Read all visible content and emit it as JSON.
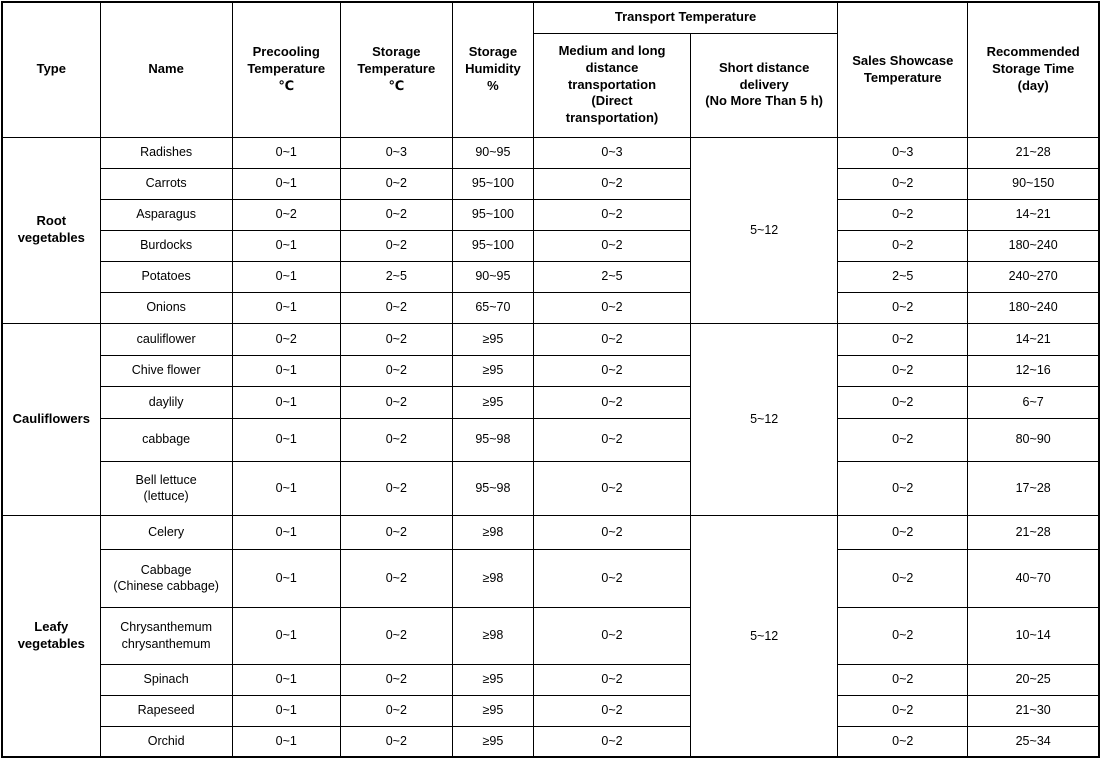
{
  "table": {
    "header": {
      "type": "Type",
      "name": "Name",
      "precooling_temperature": "Precooling\nTemperature\n℃",
      "storage_temperature": "Storage\nTemperature\n℃",
      "storage_humidity": "Storage\nHumidity\n%",
      "transport_temperature": "Transport Temperature",
      "medium_long": "Medium and long\ndistance\ntransportation\n(Direct\ntransportation)",
      "short_distance": "Short distance\ndelivery\n(No More Than 5 h)",
      "sales_showcase": "Sales Showcase\nTemperature",
      "recommended": "Recommended\nStorage Time\n(day)"
    },
    "sections": [
      {
        "type": "Root\nvegetables",
        "short_distance": "5~12",
        "rows": [
          {
            "name": "Radishes",
            "precooling": "0~1",
            "storage_temp": "0~3",
            "humidity": "90~95",
            "medium_long": "0~3",
            "sales": "0~3",
            "storage_time": "21~28"
          },
          {
            "name": "Carrots",
            "precooling": "0~1",
            "storage_temp": "0~2",
            "humidity": "95~100",
            "medium_long": "0~2",
            "sales": "0~2",
            "storage_time": "90~150"
          },
          {
            "name": "Asparagus",
            "precooling": "0~2",
            "storage_temp": "0~2",
            "humidity": "95~100",
            "medium_long": "0~2",
            "sales": "0~2",
            "storage_time": "14~21"
          },
          {
            "name": "Burdocks",
            "precooling": "0~1",
            "storage_temp": "0~2",
            "humidity": "95~100",
            "medium_long": "0~2",
            "sales": "0~2",
            "storage_time": "180~240"
          },
          {
            "name": "Potatoes",
            "precooling": "0~1",
            "storage_temp": "2~5",
            "humidity": "90~95",
            "medium_long": "2~5",
            "sales": "2~5",
            "storage_time": "240~270"
          },
          {
            "name": "Onions",
            "precooling": "0~1",
            "storage_temp": "0~2",
            "humidity": "65~70",
            "medium_long": "0~2",
            "sales": "0~2",
            "storage_time": "180~240"
          }
        ]
      },
      {
        "type": "Cauliflowers",
        "short_distance": "5~12",
        "rows": [
          {
            "name": "cauliflower",
            "precooling": "0~2",
            "storage_temp": "0~2",
            "humidity": "≥95",
            "medium_long": "0~2",
            "sales": "0~2",
            "storage_time": "14~21"
          },
          {
            "name": "Chive flower",
            "precooling": "0~1",
            "storage_temp": "0~2",
            "humidity": "≥95",
            "medium_long": "0~2",
            "sales": "0~2",
            "storage_time": "12~16"
          },
          {
            "name": "daylily",
            "precooling": "0~1",
            "storage_temp": "0~2",
            "humidity": "≥95",
            "medium_long": "0~2",
            "sales": "0~2",
            "storage_time": "6~7"
          },
          {
            "name": "cabbage",
            "precooling": "0~1",
            "storage_temp": "0~2",
            "humidity": "95~98",
            "medium_long": "0~2",
            "sales": "0~2",
            "storage_time": "80~90"
          },
          {
            "name": "Bell lettuce\n(lettuce)",
            "precooling": "0~1",
            "storage_temp": "0~2",
            "humidity": "95~98",
            "medium_long": "0~2",
            "sales": "0~2",
            "storage_time": "17~28"
          }
        ]
      },
      {
        "type": "Leafy\nvegetables",
        "short_distance": "5~12",
        "rows": [
          {
            "name": "Celery",
            "precooling": "0~1",
            "storage_temp": "0~2",
            "humidity": "≥98",
            "medium_long": "0~2",
            "sales": "0~2",
            "storage_time": "21~28"
          },
          {
            "name": "Cabbage\n(Chinese cabbage)",
            "precooling": "0~1",
            "storage_temp": "0~2",
            "humidity": "≥98",
            "medium_long": "0~2",
            "sales": "0~2",
            "storage_time": "40~70"
          },
          {
            "name": "Chrysanthemum\nchrysanthemum",
            "precooling": "0~1",
            "storage_temp": "0~2",
            "humidity": "≥98",
            "medium_long": "0~2",
            "sales": "0~2",
            "storage_time": "10~14"
          },
          {
            "name": "Spinach",
            "precooling": "0~1",
            "storage_temp": "0~2",
            "humidity": "≥95",
            "medium_long": "0~2",
            "sales": "0~2",
            "storage_time": "20~25"
          },
          {
            "name": "Rapeseed",
            "precooling": "0~1",
            "storage_temp": "0~2",
            "humidity": "≥95",
            "medium_long": "0~2",
            "sales": "0~2",
            "storage_time": "21~30"
          },
          {
            "name": "Orchid",
            "precooling": "0~1",
            "storage_temp": "0~2",
            "humidity": "≥95",
            "medium_long": "0~2",
            "sales": "0~2",
            "storage_time": "25~34"
          }
        ]
      }
    ]
  }
}
